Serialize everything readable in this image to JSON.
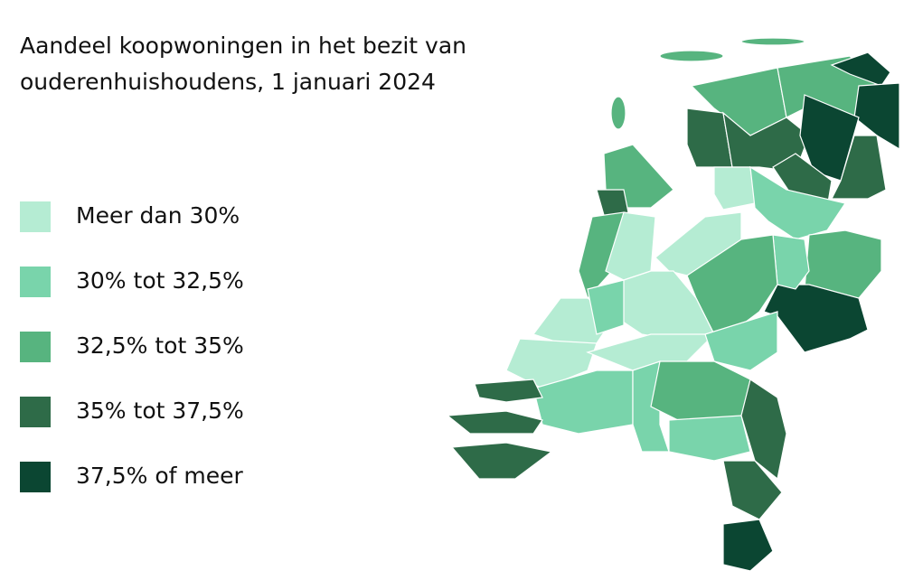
{
  "title_lines": [
    "Aandeel koopwoningen in het bezit van",
    "ouderenhuishoudens, 1 januari 2024"
  ],
  "legend": [
    {
      "label": "Meer dan 30%",
      "color": "#b5ecd3"
    },
    {
      "label": "30% tot 32,5%",
      "color": "#79d4ab"
    },
    {
      "label": "32,5% tot 35%",
      "color": "#57b47f"
    },
    {
      "label": "35% tot 37,5%",
      "color": "#2e6b48"
    },
    {
      "label": "37,5% of meer",
      "color": "#0b4632"
    }
  ]
}
